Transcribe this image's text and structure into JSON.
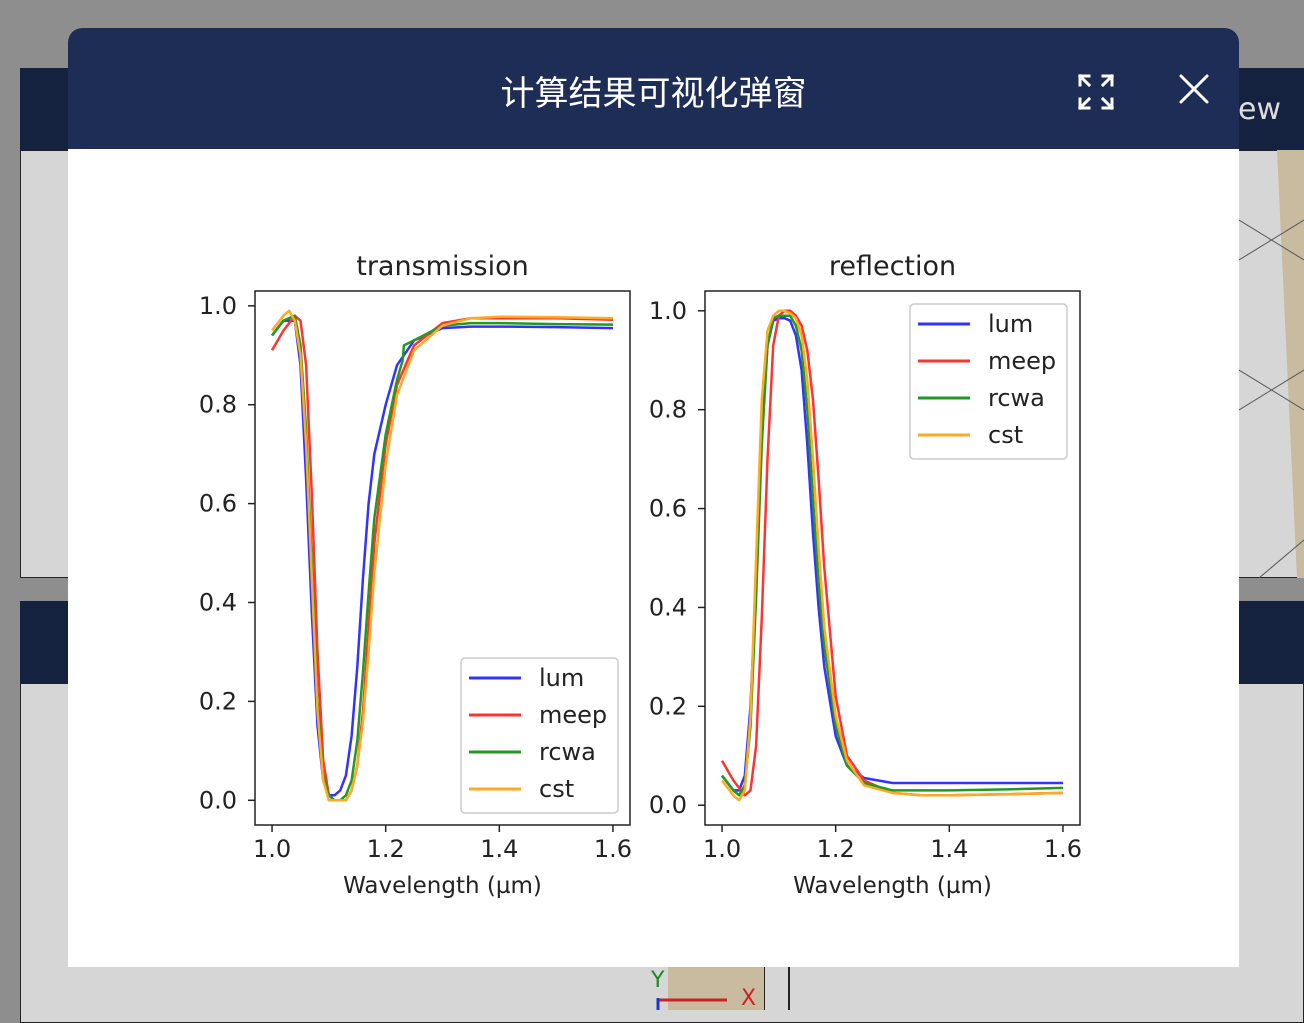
{
  "background": {
    "view_label": "ew",
    "axis_y": "Y",
    "axis_x": "X"
  },
  "modal": {
    "title": "计算结果可视化弹窗",
    "fullscreen_icon": "expand-icon",
    "close_icon": "close-icon"
  },
  "colors": {
    "lum": "#3333ff",
    "meep": "#ff3333",
    "rcwa": "#229922",
    "cst": "#ffaa22",
    "header": "#1e2d55"
  },
  "chart_data": [
    {
      "type": "line",
      "title": "transmission",
      "xlabel": "Wavelength (µm)",
      "ylabel": "",
      "xlim": [
        0.97,
        1.63
      ],
      "ylim": [
        -0.05,
        1.03
      ],
      "xticks": [
        "1.0",
        "1.2",
        "1.4",
        "1.6"
      ],
      "yticks": [
        "0.0",
        "0.2",
        "0.4",
        "0.6",
        "0.8",
        "1.0"
      ],
      "legend": "lower-right",
      "series": [
        {
          "name": "lum",
          "color": "#3333ff",
          "x": [
            1.0,
            1.02,
            1.04,
            1.05,
            1.06,
            1.07,
            1.08,
            1.09,
            1.1,
            1.11,
            1.12,
            1.13,
            1.14,
            1.15,
            1.16,
            1.17,
            1.18,
            1.2,
            1.22,
            1.25,
            1.3,
            1.35,
            1.4,
            1.5,
            1.6
          ],
          "y": [
            0.94,
            0.97,
            0.97,
            0.88,
            0.65,
            0.38,
            0.15,
            0.04,
            0.01,
            0.01,
            0.02,
            0.05,
            0.13,
            0.27,
            0.45,
            0.6,
            0.7,
            0.8,
            0.88,
            0.93,
            0.955,
            0.958,
            0.958,
            0.957,
            0.955
          ]
        },
        {
          "name": "meep",
          "color": "#ff3333",
          "x": [
            1.0,
            1.02,
            1.04,
            1.05,
            1.06,
            1.07,
            1.08,
            1.09,
            1.1,
            1.11,
            1.12,
            1.13,
            1.14,
            1.15,
            1.16,
            1.17,
            1.18,
            1.2,
            1.22,
            1.25,
            1.3,
            1.35,
            1.4,
            1.5,
            1.6
          ],
          "y": [
            0.91,
            0.95,
            0.98,
            0.97,
            0.88,
            0.62,
            0.3,
            0.08,
            0.01,
            0.0,
            0.0,
            0.0,
            0.02,
            0.07,
            0.18,
            0.35,
            0.52,
            0.72,
            0.84,
            0.92,
            0.965,
            0.975,
            0.975,
            0.975,
            0.972
          ]
        },
        {
          "name": "rcwa",
          "color": "#229922",
          "x": [
            1.0,
            1.02,
            1.04,
            1.05,
            1.06,
            1.07,
            1.08,
            1.09,
            1.1,
            1.11,
            1.12,
            1.13,
            1.14,
            1.15,
            1.16,
            1.17,
            1.18,
            1.2,
            1.22,
            1.23,
            1.232,
            1.25,
            1.3,
            1.35,
            1.4,
            1.5,
            1.6
          ],
          "y": [
            0.94,
            0.97,
            0.98,
            0.92,
            0.75,
            0.48,
            0.2,
            0.05,
            0.01,
            0.0,
            0.0,
            0.01,
            0.04,
            0.12,
            0.26,
            0.42,
            0.57,
            0.74,
            0.85,
            0.89,
            0.92,
            0.93,
            0.96,
            0.965,
            0.965,
            0.963,
            0.962
          ]
        },
        {
          "name": "cst",
          "color": "#ffaa22",
          "x": [
            1.0,
            1.02,
            1.03,
            1.04,
            1.05,
            1.06,
            1.07,
            1.08,
            1.09,
            1.1,
            1.11,
            1.12,
            1.13,
            1.14,
            1.15,
            1.16,
            1.17,
            1.18,
            1.2,
            1.22,
            1.25,
            1.3,
            1.35,
            1.4,
            1.5,
            1.6
          ],
          "y": [
            0.95,
            0.98,
            0.99,
            0.97,
            0.9,
            0.72,
            0.45,
            0.18,
            0.04,
            0.0,
            0.0,
            0.0,
            0.0,
            0.02,
            0.07,
            0.16,
            0.3,
            0.46,
            0.68,
            0.82,
            0.91,
            0.96,
            0.975,
            0.978,
            0.977,
            0.975
          ]
        }
      ]
    },
    {
      "type": "line",
      "title": "reflection",
      "xlabel": "Wavelength (µm)",
      "ylabel": "",
      "xlim": [
        0.97,
        1.63
      ],
      "ylim": [
        -0.04,
        1.04
      ],
      "xticks": [
        "1.0",
        "1.2",
        "1.4",
        "1.6"
      ],
      "yticks": [
        "0.0",
        "0.2",
        "0.4",
        "0.6",
        "0.8",
        "1.0"
      ],
      "legend": "upper-right",
      "series": [
        {
          "name": "lum",
          "color": "#3333ff",
          "x": [
            1.0,
            1.02,
            1.03,
            1.04,
            1.05,
            1.06,
            1.07,
            1.08,
            1.09,
            1.1,
            1.11,
            1.12,
            1.13,
            1.14,
            1.15,
            1.16,
            1.17,
            1.18,
            1.2,
            1.22,
            1.25,
            1.3,
            1.35,
            1.4,
            1.5,
            1.6
          ],
          "y": [
            0.06,
            0.03,
            0.03,
            0.06,
            0.2,
            0.45,
            0.75,
            0.93,
            0.98,
            0.985,
            0.985,
            0.98,
            0.95,
            0.88,
            0.73,
            0.55,
            0.4,
            0.28,
            0.14,
            0.08,
            0.055,
            0.045,
            0.045,
            0.045,
            0.045,
            0.045
          ]
        },
        {
          "name": "meep",
          "color": "#ff3333",
          "x": [
            1.0,
            1.02,
            1.04,
            1.05,
            1.06,
            1.07,
            1.08,
            1.09,
            1.1,
            1.11,
            1.12,
            1.13,
            1.14,
            1.15,
            1.16,
            1.17,
            1.18,
            1.2,
            1.22,
            1.25,
            1.3,
            1.35,
            1.4,
            1.5,
            1.6
          ],
          "y": [
            0.09,
            0.05,
            0.02,
            0.03,
            0.12,
            0.38,
            0.7,
            0.93,
            0.99,
            1.0,
            1.0,
            0.99,
            0.97,
            0.92,
            0.82,
            0.66,
            0.48,
            0.22,
            0.1,
            0.05,
            0.025,
            0.02,
            0.02,
            0.022,
            0.025
          ]
        },
        {
          "name": "rcwa",
          "color": "#229922",
          "x": [
            1.0,
            1.02,
            1.03,
            1.04,
            1.05,
            1.06,
            1.07,
            1.08,
            1.09,
            1.1,
            1.11,
            1.12,
            1.13,
            1.14,
            1.15,
            1.16,
            1.17,
            1.18,
            1.2,
            1.22,
            1.25,
            1.3,
            1.35,
            1.4,
            1.5,
            1.6
          ],
          "y": [
            0.06,
            0.03,
            0.02,
            0.04,
            0.16,
            0.42,
            0.73,
            0.93,
            0.985,
            0.99,
            0.99,
            0.99,
            0.97,
            0.92,
            0.8,
            0.62,
            0.45,
            0.32,
            0.16,
            0.08,
            0.045,
            0.03,
            0.03,
            0.03,
            0.032,
            0.035
          ]
        },
        {
          "name": "cst",
          "color": "#ffaa22",
          "x": [
            1.0,
            1.02,
            1.03,
            1.04,
            1.05,
            1.06,
            1.07,
            1.08,
            1.09,
            1.1,
            1.11,
            1.12,
            1.13,
            1.14,
            1.15,
            1.16,
            1.17,
            1.18,
            1.2,
            1.22,
            1.25,
            1.3,
            1.35,
            1.4,
            1.5,
            1.6
          ],
          "y": [
            0.05,
            0.02,
            0.01,
            0.03,
            0.18,
            0.5,
            0.82,
            0.96,
            0.99,
            1.0,
            1.0,
            0.995,
            0.985,
            0.95,
            0.86,
            0.7,
            0.52,
            0.36,
            0.18,
            0.09,
            0.04,
            0.025,
            0.02,
            0.02,
            0.022,
            0.025
          ]
        }
      ]
    }
  ]
}
